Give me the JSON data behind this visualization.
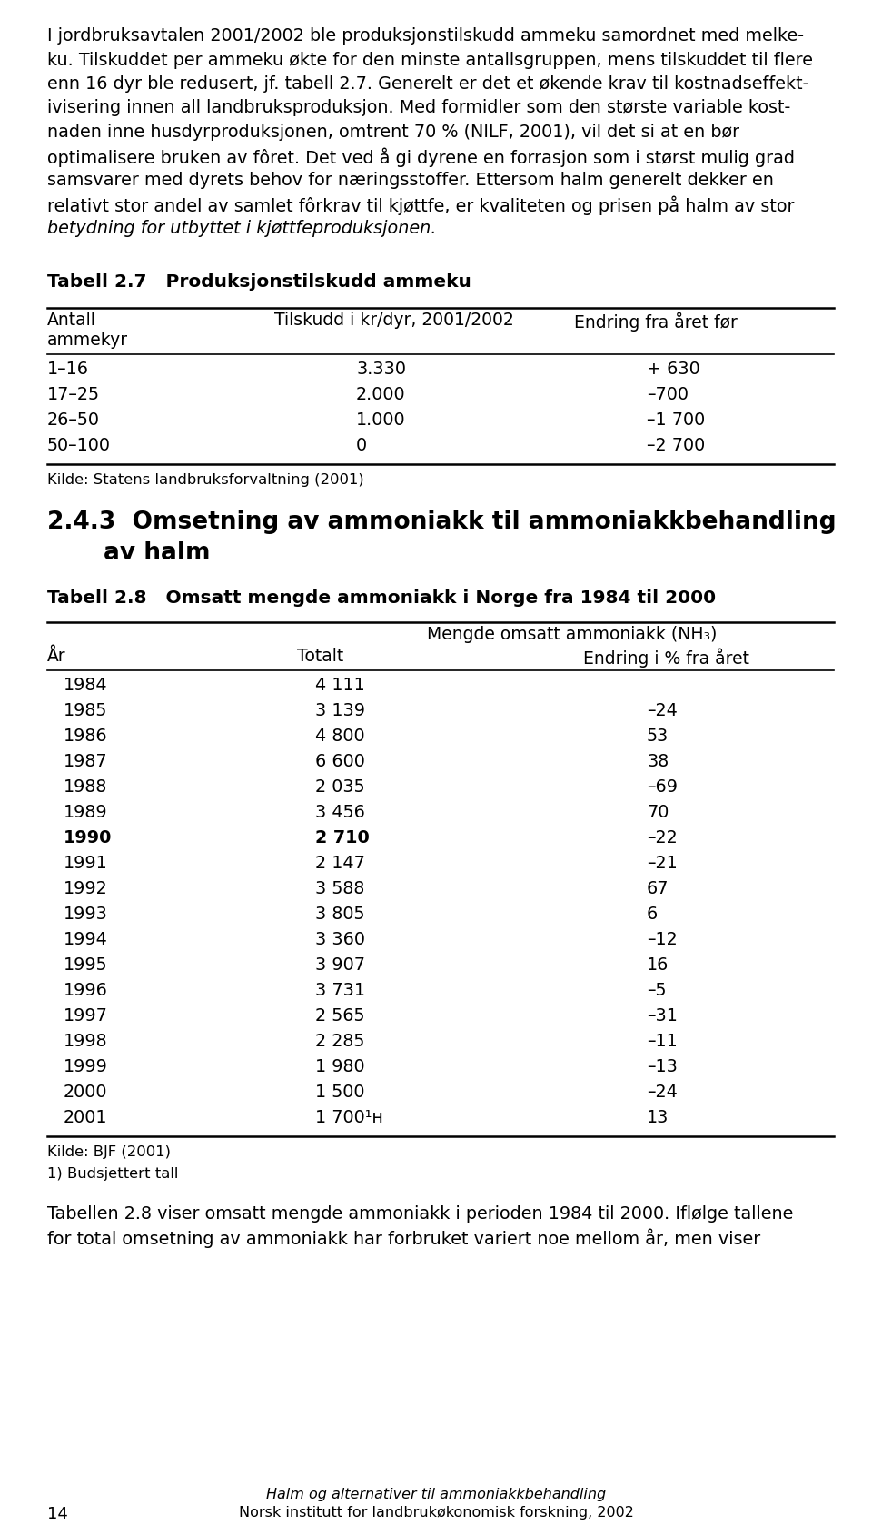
{
  "body_lines": [
    "I jordbruksavtalen 2001/2002 ble produksjonstilskudd ammeku samordnet med melke-",
    "ku. Tilskuddet per ammeku økte for den minste antallsgruppen, mens tilskuddet til flere",
    "enn 16 dyr ble redusert, jf. tabell 2.7. Generelt er det et økende krav til kostnadseffekt-",
    "ivisering innen all landbruksproduksjon. Med formidler som den største variable kost-",
    "naden inne husdyrproduksjonen, omtrent 70 % (NILF, 2001), vil det si at en bør",
    "optimalisere bruken av fôret. Det ved å gi dyrene en forrasjon som i størst mulig grad",
    "samsvarer med dyrets behov for næringsstoffer. Ettersom halm generelt dekker en",
    "relativt stor andel av samlet fôrkrav til kjøttfe, er kvaliteten og prisen på halm av stor"
  ],
  "body_italic_line": "betydning for utbyttet i kjøttfeproduksjonen.",
  "table1_title": "Tabell 2.7   Produksjonstilskudd ammeku",
  "table1_h1": "Antall",
  "table1_h1b": "ammekyr",
  "table1_h2": "Tilskudd i kr/dyr, 2001/2002",
  "table1_h3": "Endring fra året før",
  "table1_rows": [
    [
      "1–16",
      "3.330",
      "+ 630"
    ],
    [
      "17–25",
      "2.000",
      "–700"
    ],
    [
      "26–50",
      "1.000",
      "–1 700"
    ],
    [
      "50–100",
      "0",
      "–2 700"
    ]
  ],
  "table1_source": "Kilde: Statens landbruksforvaltning (2001)",
  "section_h1": "2.4.3  Omsetning av ammoniakk til ammoniakkbehandling",
  "section_h2": "av halm",
  "table2_title": "Tabell 2.8   Omsatt mengde ammoniakk i Norge fra 1984 til 2000",
  "table2_superh": "Mengde omsatt ammoniakk (NH₃)",
  "table2_h1": "År",
  "table2_h2": "Totalt",
  "table2_h3": "Endring i % fra året",
  "table2_rows": [
    [
      "1984",
      "4 111",
      ""
    ],
    [
      "1985",
      "3 139",
      "–24"
    ],
    [
      "1986",
      "4 800",
      "53"
    ],
    [
      "1987",
      "6 600",
      "38"
    ],
    [
      "1988",
      "2 035",
      "–69"
    ],
    [
      "1989",
      "3 456",
      "70"
    ],
    [
      "1990",
      "2 710",
      "–22"
    ],
    [
      "1991",
      "2 147",
      "–21"
    ],
    [
      "1992",
      "3 588",
      "67"
    ],
    [
      "1993",
      "3 805",
      "6"
    ],
    [
      "1994",
      "3 360",
      "–12"
    ],
    [
      "1995",
      "3 907",
      "16"
    ],
    [
      "1996",
      "3 731",
      "–5"
    ],
    [
      "1997",
      "2 565",
      "–31"
    ],
    [
      "1998",
      "2 285",
      "–11"
    ],
    [
      "1999",
      "1 980",
      "–13"
    ],
    [
      "2000",
      "1 500",
      "–24"
    ],
    [
      "2001",
      "1 700¹ʜ",
      "13"
    ]
  ],
  "table2_bold_rows": [
    6
  ],
  "table2_source": "Kilde: BJF (2001)",
  "table2_footnote": "1) Budsjettert tall",
  "bottom_line1": "Tabellen 2.8 viser omsatt mengde ammoniakk i perioden 1984 til 2000. Iflølge tallene",
  "bottom_line2": "for total omsetning av ammoniakk har forbruket variert noe mellom år, men viser",
  "page_number": "14",
  "footer_line1": "Halm og alternativer til ammoniakkbehandling",
  "footer_line2": "Norsk institutt for landbrukøkonomisk forskning, 2002",
  "bg_color": "#ffffff"
}
